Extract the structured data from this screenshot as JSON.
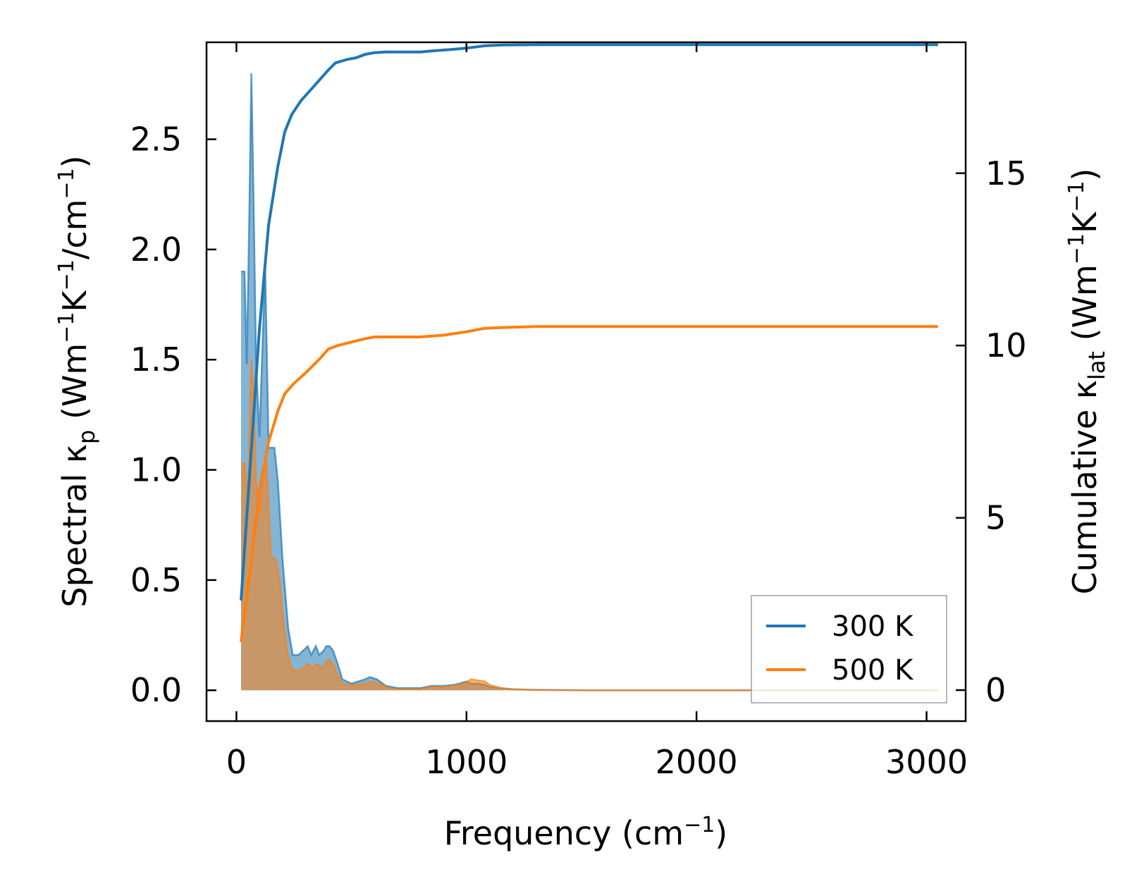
{
  "chart_data": {
    "type": "line",
    "xlabel": "Frequency (cm",
    "xlabel_sup": "−1",
    "xlabel_end": ")",
    "ylabel_left": {
      "a": "Spectral κ",
      "a_sub": "p",
      "b": " (Wm",
      "b_sup": "−1",
      "c": "K",
      "c_sup": "−1",
      "d": "/cm",
      "d_sup": "−1",
      "e": ")"
    },
    "ylabel_right": {
      "a": "Cumulative κ",
      "a_sub": "lat",
      "b": " (Wm",
      "b_sup": "−1",
      "c": "K",
      "c_sup": "−1",
      "d": ")"
    },
    "xlim": [
      -130,
      3170
    ],
    "ylim_left": [
      -0.14,
      2.94
    ],
    "ylim_right": [
      -0.9,
      18.8
    ],
    "x_ticks": [
      0,
      1000,
      2000,
      3000
    ],
    "x_tick_labels": [
      "0",
      "1000",
      "2000",
      "3000"
    ],
    "y_left_ticks": [
      0.0,
      0.5,
      1.0,
      1.5,
      2.0,
      2.5
    ],
    "y_left_tick_labels": [
      "0.0",
      "0.5",
      "1.0",
      "1.5",
      "2.0",
      "2.5"
    ],
    "y_right_ticks": [
      0,
      5,
      10,
      15
    ],
    "y_right_tick_labels": [
      "0",
      "5",
      "10",
      "15"
    ],
    "legend_position": "bottom-right",
    "series": [
      {
        "name": "300 K",
        "color": "#1f77b4",
        "spectral": [
          [
            20,
            1.9
          ],
          [
            35,
            1.9
          ],
          [
            45,
            1.48
          ],
          [
            55,
            2.1
          ],
          [
            65,
            2.8
          ],
          [
            75,
            2.2
          ],
          [
            85,
            1.5
          ],
          [
            100,
            1.15
          ],
          [
            115,
            1.62
          ],
          [
            125,
            1.93
          ],
          [
            140,
            1.1
          ],
          [
            165,
            1.1
          ],
          [
            180,
            0.95
          ],
          [
            200,
            0.6
          ],
          [
            225,
            0.28
          ],
          [
            245,
            0.16
          ],
          [
            270,
            0.16
          ],
          [
            290,
            0.18
          ],
          [
            310,
            0.2
          ],
          [
            325,
            0.16
          ],
          [
            345,
            0.2
          ],
          [
            360,
            0.16
          ],
          [
            380,
            0.18
          ],
          [
            390,
            0.2
          ],
          [
            405,
            0.2
          ],
          [
            420,
            0.18
          ],
          [
            440,
            0.12
          ],
          [
            460,
            0.05
          ],
          [
            480,
            0.04
          ],
          [
            500,
            0.03
          ],
          [
            530,
            0.04
          ],
          [
            560,
            0.05
          ],
          [
            580,
            0.06
          ],
          [
            610,
            0.05
          ],
          [
            650,
            0.02
          ],
          [
            700,
            0.01
          ],
          [
            800,
            0.01
          ],
          [
            850,
            0.02
          ],
          [
            900,
            0.02
          ],
          [
            950,
            0.025
          ],
          [
            1000,
            0.04
          ],
          [
            1020,
            0.03
          ],
          [
            1050,
            0.03
          ],
          [
            1080,
            0.025
          ],
          [
            1100,
            0.015
          ],
          [
            1150,
            0.01
          ],
          [
            1200,
            0.005
          ],
          [
            1300,
            0.002
          ],
          [
            1500,
            0.0
          ],
          [
            3050,
            0.0
          ]
        ],
        "cumulative": [
          [
            20,
            2.6
          ],
          [
            60,
            6.5
          ],
          [
            100,
            10.5
          ],
          [
            140,
            13.5
          ],
          [
            180,
            15.2
          ],
          [
            210,
            16.2
          ],
          [
            240,
            16.7
          ],
          [
            280,
            17.1
          ],
          [
            320,
            17.4
          ],
          [
            360,
            17.7
          ],
          [
            400,
            18.0
          ],
          [
            430,
            18.2
          ],
          [
            480,
            18.3
          ],
          [
            520,
            18.35
          ],
          [
            560,
            18.45
          ],
          [
            600,
            18.5
          ],
          [
            650,
            18.52
          ],
          [
            700,
            18.52
          ],
          [
            800,
            18.52
          ],
          [
            850,
            18.55
          ],
          [
            950,
            18.6
          ],
          [
            1000,
            18.63
          ],
          [
            1080,
            18.7
          ],
          [
            1150,
            18.72
          ],
          [
            1300,
            18.73
          ],
          [
            3050,
            18.73
          ]
        ]
      },
      {
        "name": "500 K",
        "color": "#ff7f0e",
        "spectral": [
          [
            20,
            1.03
          ],
          [
            35,
            1.03
          ],
          [
            50,
            0.88
          ],
          [
            65,
            1.5
          ],
          [
            75,
            1.3
          ],
          [
            85,
            0.95
          ],
          [
            100,
            0.8
          ],
          [
            115,
            0.95
          ],
          [
            130,
            1.05
          ],
          [
            150,
            0.6
          ],
          [
            170,
            0.6
          ],
          [
            185,
            0.52
          ],
          [
            205,
            0.3
          ],
          [
            225,
            0.15
          ],
          [
            245,
            0.09
          ],
          [
            270,
            0.09
          ],
          [
            290,
            0.1
          ],
          [
            310,
            0.12
          ],
          [
            330,
            0.1
          ],
          [
            350,
            0.12
          ],
          [
            370,
            0.1
          ],
          [
            385,
            0.12
          ],
          [
            400,
            0.14
          ],
          [
            420,
            0.12
          ],
          [
            440,
            0.07
          ],
          [
            460,
            0.03
          ],
          [
            490,
            0.025
          ],
          [
            520,
            0.025
          ],
          [
            560,
            0.03
          ],
          [
            580,
            0.04
          ],
          [
            620,
            0.03
          ],
          [
            660,
            0.01
          ],
          [
            700,
            0.005
          ],
          [
            800,
            0.005
          ],
          [
            850,
            0.015
          ],
          [
            900,
            0.015
          ],
          [
            950,
            0.02
          ],
          [
            1000,
            0.035
          ],
          [
            1020,
            0.05
          ],
          [
            1050,
            0.045
          ],
          [
            1080,
            0.04
          ],
          [
            1100,
            0.025
          ],
          [
            1150,
            0.01
          ],
          [
            1200,
            0.004
          ],
          [
            1300,
            0.001
          ],
          [
            1500,
            0.0
          ],
          [
            3050,
            0.0
          ]
        ],
        "cumulative": [
          [
            20,
            1.4
          ],
          [
            60,
            3.5
          ],
          [
            100,
            5.8
          ],
          [
            140,
            7.2
          ],
          [
            180,
            8.1
          ],
          [
            210,
            8.6
          ],
          [
            250,
            8.9
          ],
          [
            300,
            9.2
          ],
          [
            360,
            9.6
          ],
          [
            400,
            9.9
          ],
          [
            440,
            10.0
          ],
          [
            500,
            10.1
          ],
          [
            560,
            10.2
          ],
          [
            600,
            10.25
          ],
          [
            700,
            10.25
          ],
          [
            800,
            10.25
          ],
          [
            900,
            10.3
          ],
          [
            1000,
            10.4
          ],
          [
            1080,
            10.5
          ],
          [
            1150,
            10.52
          ],
          [
            1300,
            10.55
          ],
          [
            3050,
            10.55
          ]
        ]
      }
    ]
  }
}
